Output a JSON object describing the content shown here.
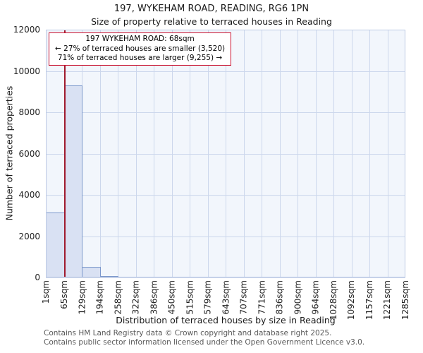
{
  "chart_data": {
    "type": "bar",
    "title": "197, WYKEHAM ROAD, READING, RG6 1PN",
    "subtitle": "Size of property relative to terraced houses in Reading",
    "xlabel": "Distribution of terraced houses by size in Reading",
    "ylabel": "Number of terraced properties",
    "ylim": [
      0,
      12000
    ],
    "y_ticks": [
      0,
      2000,
      4000,
      6000,
      8000,
      10000,
      12000
    ],
    "x_tick_labels": [
      "1sqm",
      "65sqm",
      "129sqm",
      "194sqm",
      "258sqm",
      "322sqm",
      "386sqm",
      "450sqm",
      "515sqm",
      "579sqm",
      "643sqm",
      "707sqm",
      "771sqm",
      "836sqm",
      "900sqm",
      "964sqm",
      "1028sqm",
      "1092sqm",
      "1157sqm",
      "1221sqm",
      "1285sqm"
    ],
    "bin_edges_sqm": [
      1,
      65,
      129,
      194,
      258,
      322,
      386,
      450,
      515,
      579,
      643,
      707,
      771,
      836,
      900,
      964,
      1028,
      1092,
      1157,
      1221,
      1285
    ],
    "values": [
      3150,
      9300,
      500,
      60,
      0,
      0,
      0,
      0,
      0,
      0,
      0,
      0,
      0,
      0,
      0,
      0,
      0,
      0,
      0,
      0
    ],
    "grid": true,
    "marker": {
      "value_sqm": 68,
      "label": "197 WYKEHAM ROAD: 68sqm"
    }
  },
  "annotation": {
    "line1": "197 WYKEHAM ROAD: 68sqm",
    "line2": "← 27% of terraced houses are smaller (3,520)",
    "line3": "71% of terraced houses are larger (9,255) →"
  },
  "footer": {
    "line1": "Contains HM Land Registry data © Crown copyright and database right 2025.",
    "line2": "Contains public sector information licensed under the Open Government Licence v3.0."
  },
  "colors": {
    "plot_bg": "#f2f6fc",
    "grid_color": "#ccd7ec",
    "plot_frame": "#bcc9e4",
    "bar_fill": "#d9e1f3",
    "bar_border": "#7b97cb",
    "marker_line": "#a01a2e",
    "annotation_border": "#c8102e",
    "footer_color": "#595959",
    "text_color": "#1a1a1a"
  }
}
